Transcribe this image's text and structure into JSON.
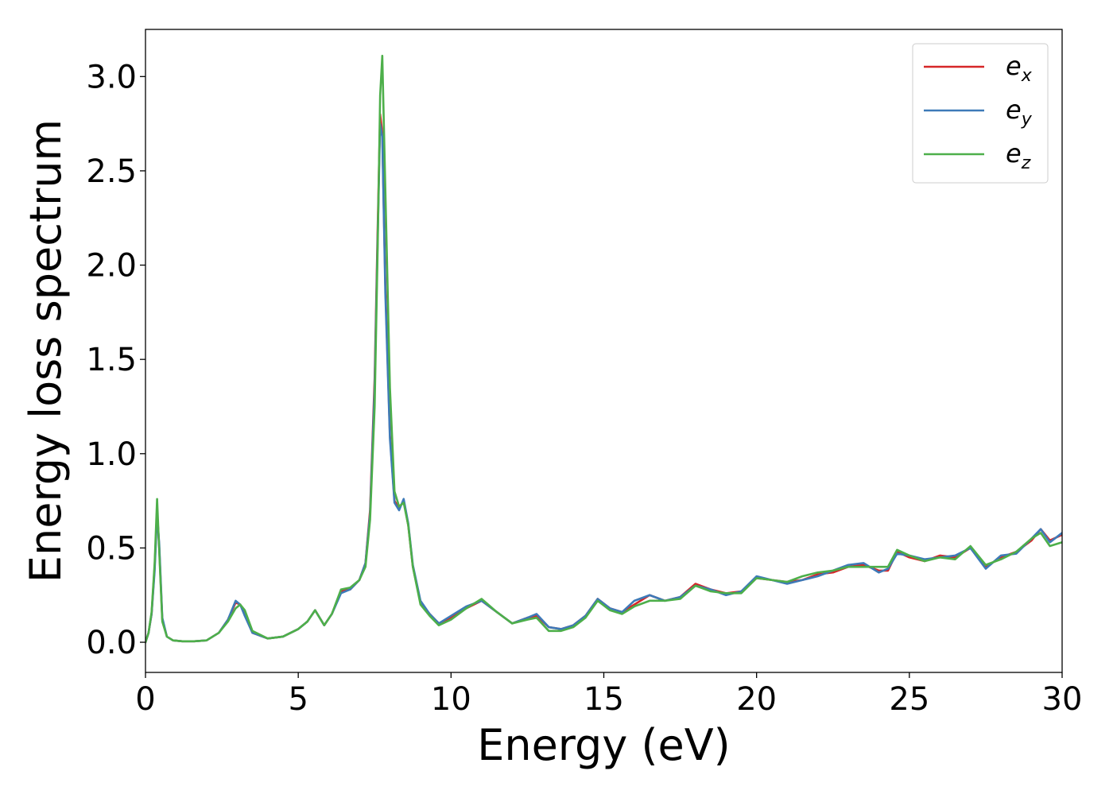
{
  "chart_data": {
    "type": "line",
    "xlabel": "Energy (eV)",
    "ylabel": "Energy loss spectrum",
    "xlim": [
      0,
      30
    ],
    "ylim": [
      -0.16,
      3.25
    ],
    "xticks": [
      "0",
      "5",
      "10",
      "15",
      "20",
      "25",
      "30"
    ],
    "yticks": [
      "0.0",
      "0.5",
      "1.0",
      "1.5",
      "2.0",
      "2.5",
      "3.0"
    ],
    "grid": false,
    "legend": "top-right",
    "series": [
      {
        "name": "e_x",
        "legend_base": "e",
        "legend_sub": "x",
        "color": "#d62728",
        "x": [
          0,
          0.1,
          0.2,
          0.3,
          0.38,
          0.45,
          0.55,
          0.7,
          0.9,
          1.2,
          1.6,
          2.0,
          2.4,
          2.7,
          2.95,
          3.1,
          3.25,
          3.5,
          4.0,
          4.5,
          5.0,
          5.3,
          5.55,
          5.85,
          6.1,
          6.4,
          6.7,
          7.0,
          7.2,
          7.35,
          7.5,
          7.6,
          7.68,
          7.75,
          7.85,
          8.0,
          8.15,
          8.3,
          8.45,
          8.6,
          8.75,
          9.0,
          9.3,
          9.6,
          10.0,
          10.5,
          11.0,
          11.5,
          12.0,
          12.5,
          12.8,
          13.2,
          13.6,
          14.0,
          14.4,
          14.8,
          15.2,
          15.6,
          16.0,
          16.5,
          17.0,
          17.5,
          18.0,
          18.5,
          19.0,
          19.5,
          20.0,
          20.5,
          21.0,
          21.5,
          22.0,
          22.5,
          23.0,
          23.5,
          24.0,
          24.3,
          24.6,
          25.0,
          25.5,
          26.0,
          26.5,
          27.0,
          27.5,
          28.0,
          28.5,
          29.0,
          29.3,
          29.6,
          30.0
        ],
        "y": [
          0.0,
          0.05,
          0.15,
          0.4,
          0.7,
          0.5,
          0.12,
          0.03,
          0.01,
          0.005,
          0.005,
          0.01,
          0.05,
          0.12,
          0.21,
          0.2,
          0.15,
          0.05,
          0.02,
          0.03,
          0.07,
          0.11,
          0.17,
          0.09,
          0.15,
          0.27,
          0.28,
          0.33,
          0.42,
          0.7,
          1.4,
          2.2,
          2.8,
          2.7,
          1.9,
          1.1,
          0.75,
          0.71,
          0.75,
          0.62,
          0.4,
          0.21,
          0.15,
          0.1,
          0.13,
          0.18,
          0.22,
          0.16,
          0.1,
          0.13,
          0.14,
          0.08,
          0.07,
          0.09,
          0.14,
          0.23,
          0.18,
          0.16,
          0.2,
          0.25,
          0.22,
          0.24,
          0.31,
          0.28,
          0.26,
          0.27,
          0.34,
          0.33,
          0.32,
          0.33,
          0.36,
          0.37,
          0.4,
          0.41,
          0.38,
          0.38,
          0.48,
          0.45,
          0.43,
          0.46,
          0.45,
          0.5,
          0.4,
          0.45,
          0.48,
          0.54,
          0.6,
          0.54,
          0.57
        ]
      },
      {
        "name": "e_y",
        "legend_base": "e",
        "legend_sub": "y",
        "color": "#3d7ab8",
        "x": [
          0,
          0.1,
          0.2,
          0.3,
          0.38,
          0.45,
          0.55,
          0.7,
          0.9,
          1.2,
          1.6,
          2.0,
          2.4,
          2.7,
          2.95,
          3.1,
          3.25,
          3.5,
          4.0,
          4.5,
          5.0,
          5.3,
          5.55,
          5.85,
          6.1,
          6.4,
          6.7,
          7.0,
          7.2,
          7.35,
          7.5,
          7.6,
          7.68,
          7.75,
          7.85,
          8.0,
          8.15,
          8.3,
          8.45,
          8.6,
          8.75,
          9.0,
          9.3,
          9.6,
          10.0,
          10.5,
          11.0,
          11.5,
          12.0,
          12.5,
          12.8,
          13.2,
          13.6,
          14.0,
          14.4,
          14.8,
          15.2,
          15.6,
          16.0,
          16.5,
          17.0,
          17.5,
          18.0,
          18.5,
          19.0,
          19.5,
          20.0,
          20.5,
          21.0,
          21.5,
          22.0,
          22.5,
          23.0,
          23.5,
          24.0,
          24.3,
          24.6,
          25.0,
          25.5,
          26.0,
          26.5,
          27.0,
          27.5,
          28.0,
          28.5,
          29.0,
          29.3,
          29.6,
          30.0
        ],
        "y": [
          0.0,
          0.05,
          0.15,
          0.38,
          0.68,
          0.52,
          0.13,
          0.03,
          0.01,
          0.005,
          0.005,
          0.01,
          0.05,
          0.12,
          0.22,
          0.2,
          0.14,
          0.05,
          0.02,
          0.03,
          0.07,
          0.11,
          0.17,
          0.09,
          0.15,
          0.26,
          0.28,
          0.33,
          0.42,
          0.68,
          1.35,
          2.15,
          2.75,
          2.68,
          1.85,
          1.08,
          0.74,
          0.7,
          0.76,
          0.63,
          0.41,
          0.22,
          0.15,
          0.1,
          0.14,
          0.19,
          0.22,
          0.16,
          0.1,
          0.13,
          0.15,
          0.08,
          0.07,
          0.09,
          0.14,
          0.23,
          0.18,
          0.16,
          0.22,
          0.25,
          0.22,
          0.24,
          0.3,
          0.28,
          0.25,
          0.27,
          0.35,
          0.33,
          0.31,
          0.33,
          0.35,
          0.38,
          0.41,
          0.42,
          0.37,
          0.39,
          0.47,
          0.46,
          0.44,
          0.45,
          0.46,
          0.5,
          0.39,
          0.46,
          0.47,
          0.55,
          0.6,
          0.53,
          0.58
        ]
      },
      {
        "name": "e_z",
        "legend_base": "e",
        "legend_sub": "z",
        "color": "#4daf4a",
        "x": [
          0,
          0.1,
          0.2,
          0.3,
          0.38,
          0.45,
          0.55,
          0.7,
          0.9,
          1.2,
          1.6,
          2.0,
          2.4,
          2.7,
          2.95,
          3.1,
          3.25,
          3.5,
          4.0,
          4.5,
          5.0,
          5.3,
          5.55,
          5.85,
          6.1,
          6.4,
          6.7,
          7.0,
          7.2,
          7.35,
          7.5,
          7.6,
          7.68,
          7.75,
          7.85,
          8.0,
          8.15,
          8.3,
          8.45,
          8.6,
          8.75,
          9.0,
          9.3,
          9.6,
          10.0,
          10.5,
          11.0,
          11.5,
          12.0,
          12.5,
          12.8,
          13.2,
          13.6,
          14.0,
          14.4,
          14.8,
          15.2,
          15.6,
          16.0,
          16.5,
          17.0,
          17.5,
          18.0,
          18.5,
          19.0,
          19.5,
          20.0,
          20.5,
          21.0,
          21.5,
          22.0,
          22.5,
          23.0,
          23.5,
          24.0,
          24.3,
          24.6,
          25.0,
          25.5,
          26.0,
          26.5,
          27.0,
          27.5,
          28.0,
          28.5,
          29.0,
          29.3,
          29.6,
          30.0
        ],
        "y": [
          0.0,
          0.05,
          0.16,
          0.42,
          0.76,
          0.48,
          0.11,
          0.03,
          0.01,
          0.005,
          0.005,
          0.01,
          0.05,
          0.11,
          0.18,
          0.2,
          0.17,
          0.06,
          0.02,
          0.03,
          0.07,
          0.11,
          0.17,
          0.09,
          0.15,
          0.28,
          0.29,
          0.33,
          0.4,
          0.65,
          1.25,
          2.1,
          2.9,
          3.11,
          2.4,
          1.35,
          0.8,
          0.72,
          0.74,
          0.62,
          0.4,
          0.2,
          0.14,
          0.09,
          0.12,
          0.18,
          0.23,
          0.16,
          0.1,
          0.12,
          0.13,
          0.06,
          0.06,
          0.08,
          0.13,
          0.22,
          0.17,
          0.15,
          0.19,
          0.22,
          0.22,
          0.23,
          0.3,
          0.27,
          0.26,
          0.26,
          0.34,
          0.33,
          0.32,
          0.35,
          0.37,
          0.38,
          0.4,
          0.4,
          0.4,
          0.4,
          0.49,
          0.46,
          0.43,
          0.45,
          0.44,
          0.51,
          0.41,
          0.44,
          0.48,
          0.55,
          0.58,
          0.51,
          0.53
        ]
      }
    ]
  }
}
